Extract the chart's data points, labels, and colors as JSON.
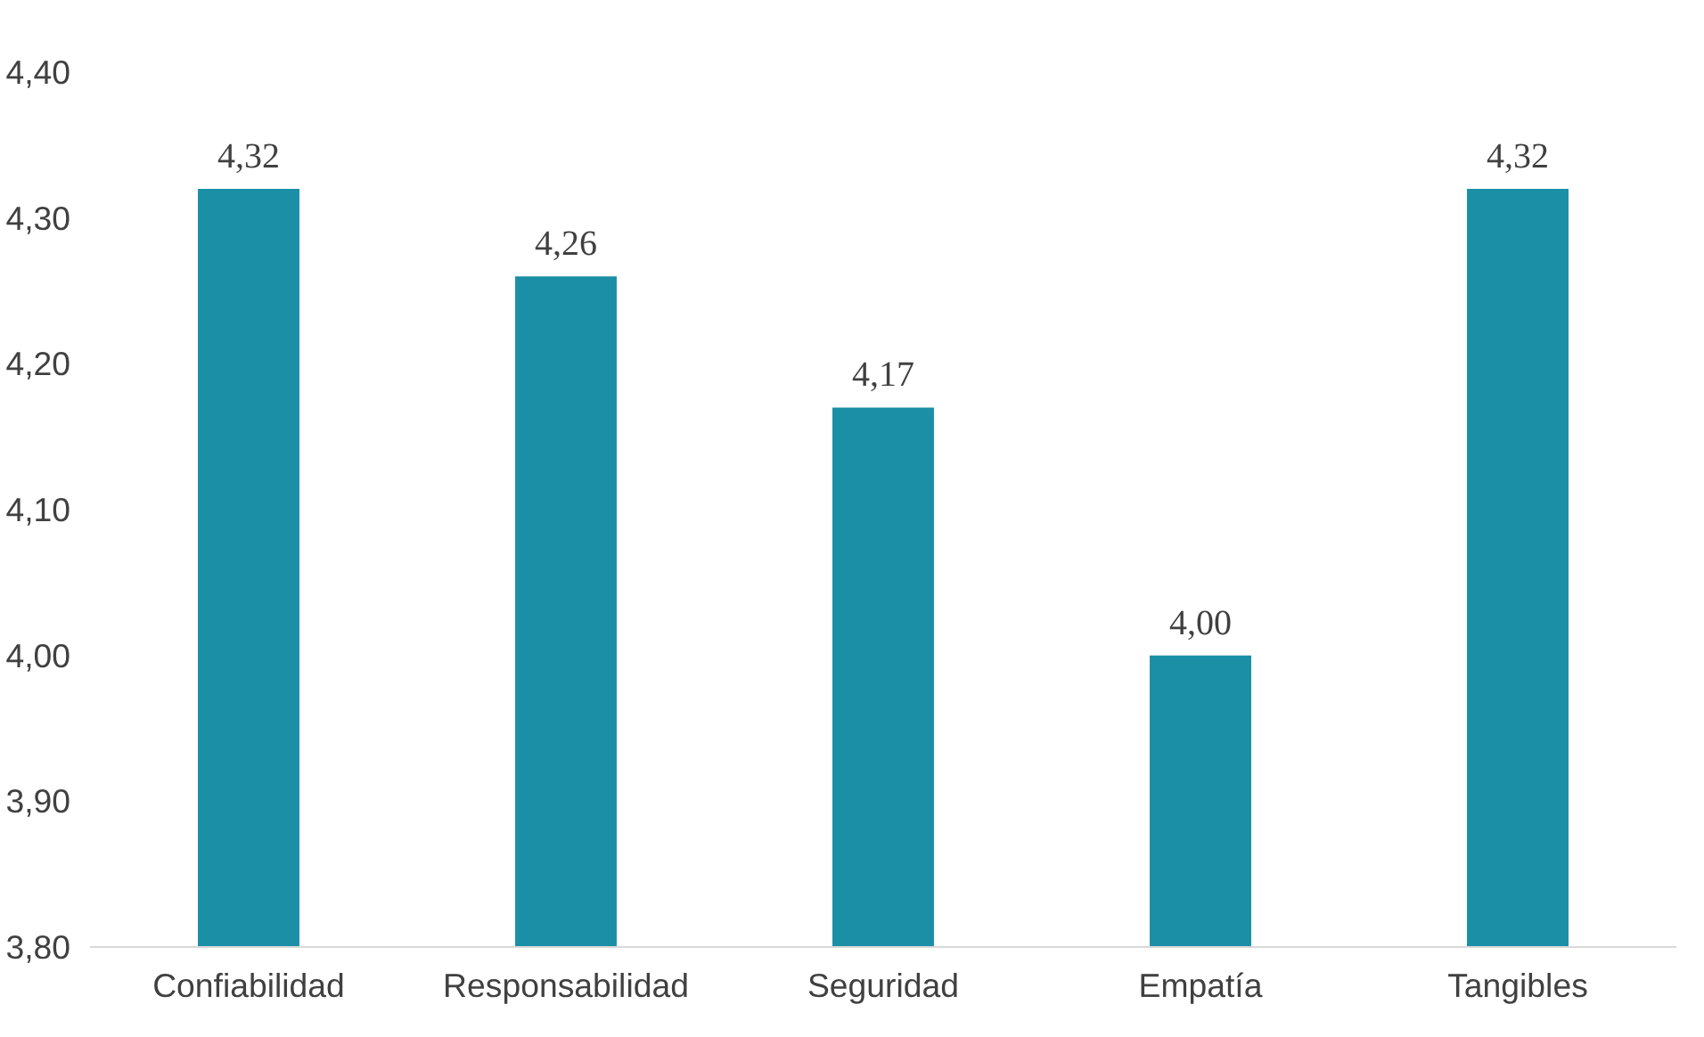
{
  "chart_data": {
    "type": "bar",
    "categories": [
      "Confiabilidad",
      "Responsabilidad",
      "Seguridad",
      "Empatía",
      "Tangibles"
    ],
    "values": [
      4.32,
      4.26,
      4.17,
      4.0,
      4.32
    ],
    "value_labels": [
      "4,32",
      "4,26",
      "4,17",
      "4,00",
      "4,32"
    ],
    "color": "#1a8fa6",
    "ylim": [
      3.8,
      4.4
    ],
    "yticks": [
      {
        "value": 3.8,
        "label": "3,80"
      },
      {
        "value": 3.9,
        "label": "3,90"
      },
      {
        "value": 4.0,
        "label": "4,00"
      },
      {
        "value": 4.1,
        "label": "4,10"
      },
      {
        "value": 4.2,
        "label": "4,20"
      },
      {
        "value": 4.3,
        "label": "4,30"
      },
      {
        "value": 4.4,
        "label": "4,40"
      }
    ],
    "grid": false
  }
}
